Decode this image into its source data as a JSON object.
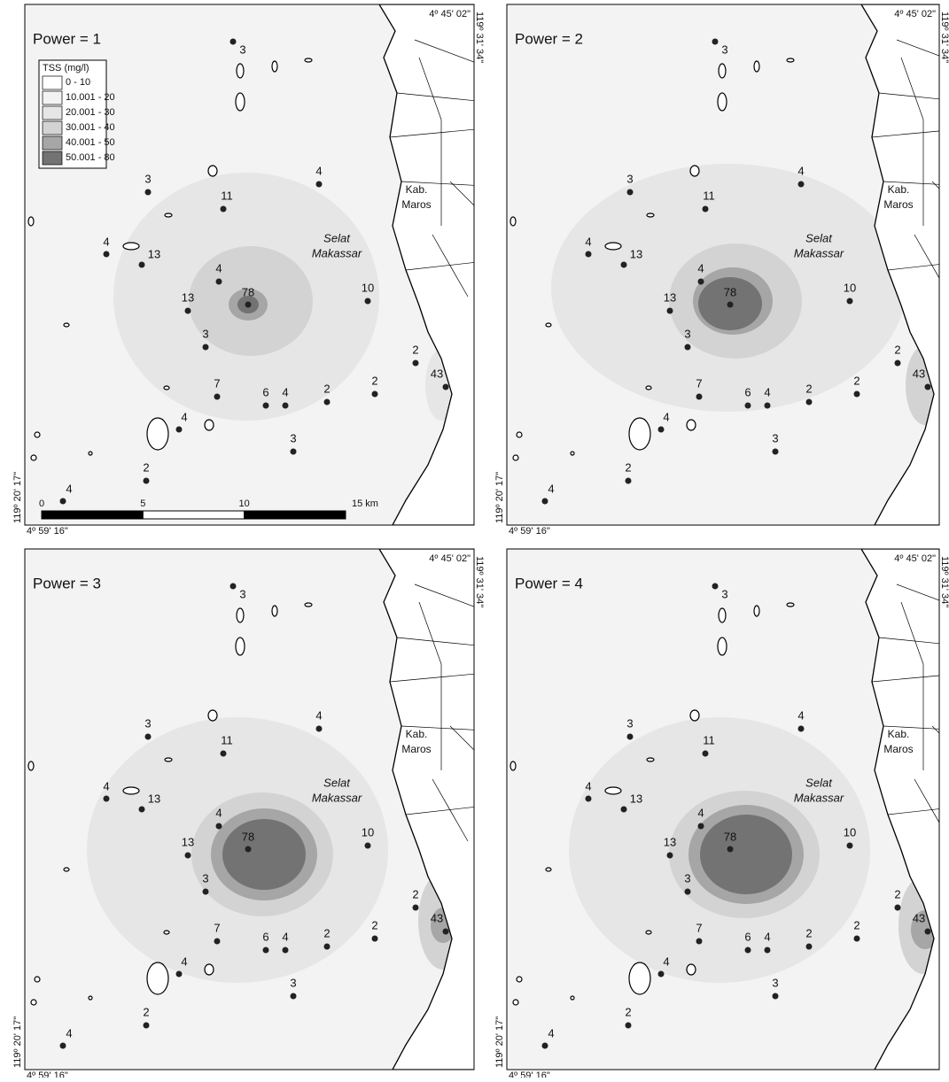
{
  "panels": [
    {
      "title": "Power = 1",
      "lat_top": "4º 45' 02\"",
      "lon_right": "119º 31' 34\"",
      "lon_left": "119º 20' 17\"",
      "lat_bottom": "4º 59' 16\""
    },
    {
      "title": "Power = 2",
      "lat_top": "4º 45' 02\"",
      "lon_right": "119º 31' 34\"",
      "lon_left": "119º 20' 17\"",
      "lat_bottom": "4º 59' 16\""
    },
    {
      "title": "Power = 3",
      "lat_top": "4º 45' 02\"",
      "lon_right": "119º 31' 34\"",
      "lon_left": "119º 20' 17\"",
      "lat_bottom": "4º 59' 16\""
    },
    {
      "title": "Power = 4",
      "lat_top": "4º 45' 02\"",
      "lon_right": "119º 31' 34\"",
      "lon_left": "119º 20' 17\"",
      "lat_bottom": "4º 59' 16\""
    }
  ],
  "stations": [
    "3",
    "4",
    "3",
    "11",
    "4",
    "13",
    "4",
    "78",
    "13",
    "10",
    "3",
    "2",
    "43",
    "7",
    "6",
    "4",
    "2",
    "2",
    "4",
    "3",
    "2",
    "4"
  ],
  "places": {
    "sea": [
      "Selat",
      "Makassar"
    ],
    "district": [
      "Kab.",
      "Maros"
    ]
  },
  "legend": {
    "title": "TSS (mg/l)",
    "classes": [
      {
        "label": "0 - 10",
        "color": "#ffffff"
      },
      {
        "label": "10.001 - 20",
        "color": "#f3f3f3"
      },
      {
        "label": "20.001 - 30",
        "color": "#e6e6e6"
      },
      {
        "label": "30.001 - 40",
        "color": "#d3d3d3"
      },
      {
        "label": "40.001 - 50",
        "color": "#a6a6a6"
      },
      {
        "label": "50.001 - 80",
        "color": "#737373"
      }
    ]
  },
  "scale_bar": [
    "0",
    "5",
    "10",
    "15 km"
  ]
}
